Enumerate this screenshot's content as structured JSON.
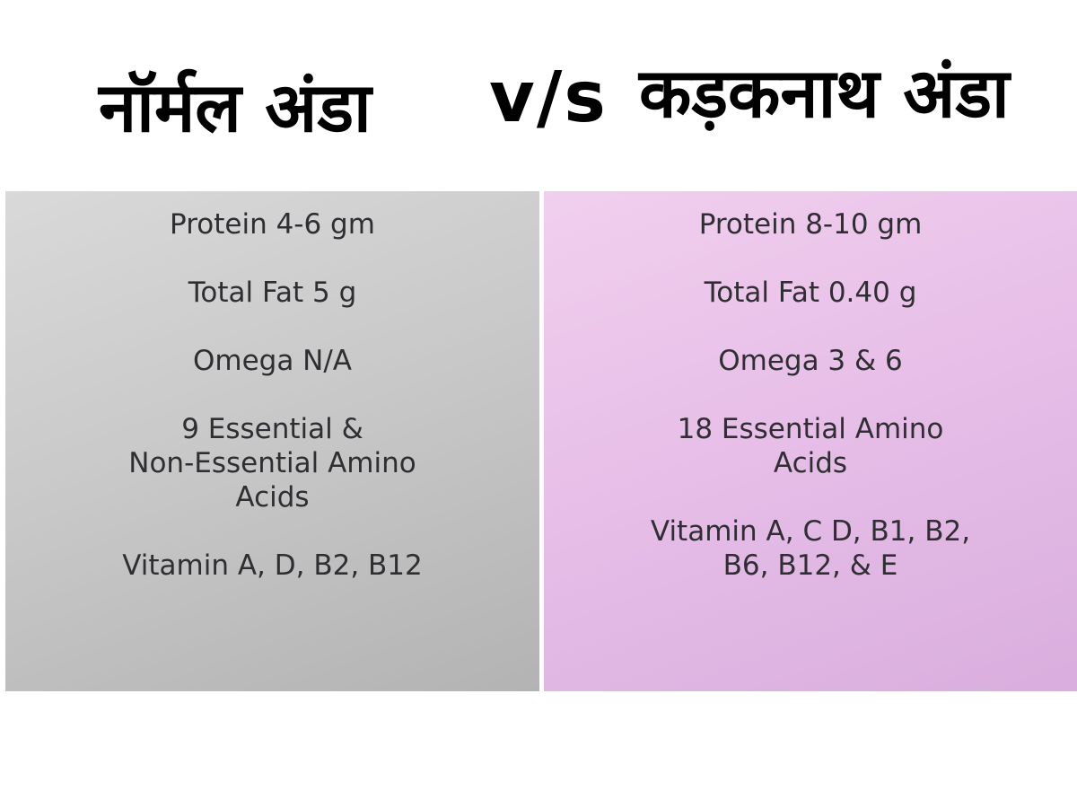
{
  "header": {
    "left_title": "नॉर्मल अंडा",
    "vs": "v/s",
    "right_title": "कड़कनाथ अंडा"
  },
  "left_panel": {
    "background": "#c9c9c9",
    "facts": [
      "Protein 4-6 gm",
      "Total Fat 5 g",
      "Omega N/A",
      "9 Essential  &\nNon-Essential Amino\nAcids",
      "Vitamin A, D, B2, B12"
    ]
  },
  "right_panel": {
    "background": "#e7bfe8",
    "facts": [
      "Protein 8-10 gm",
      "Total Fat 0.40 g",
      "Omega 3 & 6",
      "18 Essential Amino\nAcids",
      "Vitamin A, C D, B1, B2,\nB6, B12, & E"
    ]
  }
}
